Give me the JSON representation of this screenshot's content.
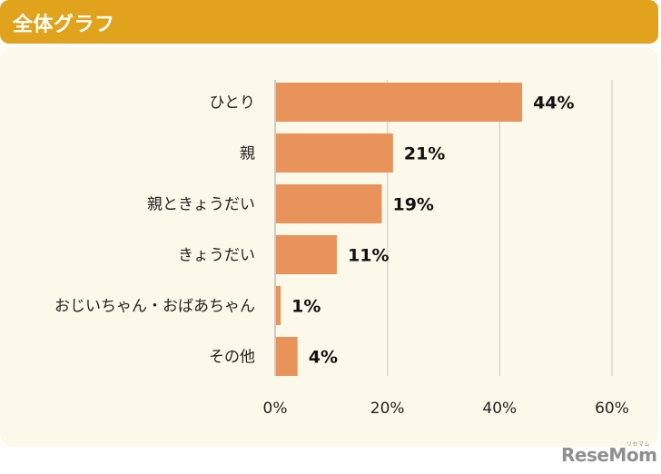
{
  "header": {
    "title": "全体グラフ"
  },
  "chart_data": {
    "type": "bar",
    "orientation": "horizontal",
    "categories": [
      "ひとり",
      "親",
      "親ときょうだい",
      "きょうだい",
      "おじいちゃん・おばあちゃん",
      "その他"
    ],
    "values": [
      44,
      21,
      19,
      11,
      1,
      4
    ],
    "value_labels": [
      "44%",
      "21%",
      "19%",
      "11%",
      "1%",
      "4%"
    ],
    "xlim": [
      0,
      60
    ],
    "xticks": [
      0,
      20,
      40,
      60
    ],
    "xtick_labels": [
      "0%",
      "20%",
      "40%",
      "60%"
    ],
    "grid": true,
    "bar_color": "#e8935a"
  },
  "logo": {
    "text": "ReseMom",
    "kana": "リセマム"
  },
  "colors": {
    "header": "#e1a21c",
    "panel": "#fcf9ea",
    "grid": "#d9d6ce",
    "axis": "#bdbdbd",
    "bar": "#e8935a"
  }
}
